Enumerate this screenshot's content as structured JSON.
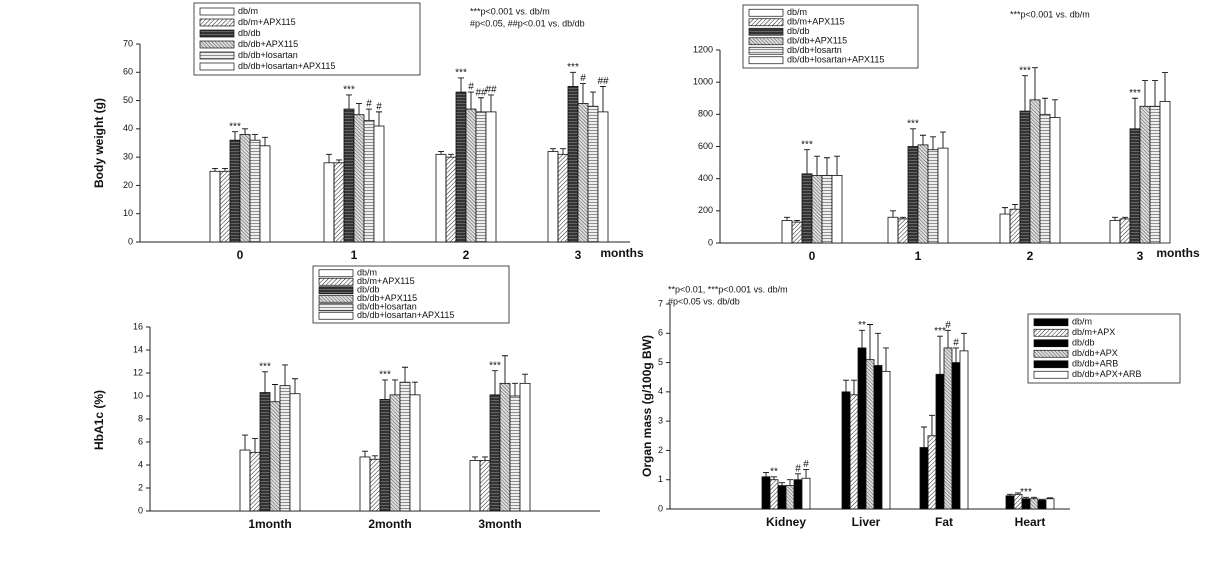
{
  "chart_data": [
    {
      "type": "bar",
      "y_label": "Body weight (g)",
      "x_label": "months",
      "annotations": [
        "***p<0.001 vs. db/m",
        "#p<0.05, ##p<0.01 vs. db/db"
      ],
      "categories": [
        "0",
        "1",
        "2",
        "3"
      ],
      "ylim": [
        0,
        70
      ],
      "yticks": [
        0,
        10,
        20,
        30,
        40,
        50,
        60,
        70
      ],
      "series": [
        {
          "name": "db/m",
          "color": "#ffffff",
          "pattern": "none",
          "values": [
            25,
            28,
            31,
            32
          ],
          "errors": [
            1,
            3,
            1,
            1
          ],
          "markers": [
            null,
            null,
            null,
            null
          ]
        },
        {
          "name": "db/m+APX115",
          "color": "#ffffff",
          "pattern": "diagonal",
          "values": [
            25,
            28,
            30,
            31
          ],
          "errors": [
            1,
            1,
            1,
            2
          ],
          "markers": [
            null,
            null,
            null,
            null
          ]
        },
        {
          "name": "db/db",
          "color": "#555555",
          "pattern": "crosshatch",
          "values": [
            36,
            47,
            53,
            55
          ],
          "errors": [
            3,
            5,
            5,
            5
          ],
          "markers": [
            "***",
            "***",
            "***",
            "***"
          ]
        },
        {
          "name": "db/db+APX115",
          "color": "#bbbbbb",
          "pattern": "diagonal-dense",
          "values": [
            38,
            45,
            47,
            49
          ],
          "errors": [
            2,
            4,
            6,
            7
          ],
          "markers": [
            null,
            null,
            "#",
            "#"
          ]
        },
        {
          "name": "db/db+losartan",
          "color": "#dddddd",
          "pattern": "horizontal",
          "values": [
            36,
            43,
            46,
            48
          ],
          "errors": [
            2,
            4,
            5,
            5
          ],
          "markers": [
            null,
            "#",
            "##",
            null
          ]
        },
        {
          "name": "db/db+losartan+APX115",
          "color": "#ffffff",
          "pattern": "none",
          "values": [
            34,
            41,
            46,
            46
          ],
          "errors": [
            3,
            5,
            6,
            9
          ],
          "markers": [
            null,
            "#",
            "##",
            "##"
          ]
        }
      ]
    },
    {
      "type": "bar",
      "x_label": "months",
      "annotations": [
        "***p<0.001 vs. db/m"
      ],
      "categories": [
        "0",
        "1",
        "2",
        "3"
      ],
      "ylim": [
        0,
        1200
      ],
      "yticks": [
        0,
        200,
        400,
        600,
        800,
        1000,
        1200
      ],
      "series": [
        {
          "name": "db/m",
          "color": "#ffffff",
          "pattern": "none",
          "values": [
            140,
            160,
            180,
            140
          ],
          "errors": [
            20,
            40,
            40,
            20
          ],
          "markers": [
            null,
            null,
            null,
            null
          ]
        },
        {
          "name": "db/m+APX115",
          "color": "#ffffff",
          "pattern": "diagonal",
          "values": [
            130,
            150,
            210,
            150
          ],
          "errors": [
            10,
            10,
            30,
            10
          ],
          "markers": [
            null,
            null,
            null,
            null
          ]
        },
        {
          "name": "db/db",
          "color": "#555555",
          "pattern": "crosshatch",
          "values": [
            430,
            600,
            820,
            710
          ],
          "errors": [
            150,
            110,
            220,
            190
          ],
          "markers": [
            "***",
            "***",
            "***",
            "***"
          ]
        },
        {
          "name": "db/db+APX115",
          "color": "#bbbbbb",
          "pattern": "diagonal-dense",
          "values": [
            420,
            610,
            890,
            850
          ],
          "errors": [
            120,
            60,
            200,
            160
          ],
          "markers": [
            null,
            null,
            null,
            null
          ]
        },
        {
          "name": "db/db+losartn",
          "color": "#dddddd",
          "pattern": "horizontal",
          "values": [
            420,
            580,
            800,
            850
          ],
          "errors": [
            110,
            80,
            100,
            160
          ],
          "markers": [
            null,
            null,
            null,
            null
          ]
        },
        {
          "name": "db/db+losartan+APX115",
          "color": "#ffffff",
          "pattern": "none",
          "values": [
            420,
            590,
            780,
            880
          ],
          "errors": [
            120,
            100,
            110,
            180
          ],
          "markers": [
            null,
            null,
            null,
            null
          ]
        }
      ]
    },
    {
      "type": "bar",
      "y_label": "HbA1c (%)",
      "categories": [
        "1month",
        "2month",
        "3month"
      ],
      "ylim": [
        0,
        16
      ],
      "yticks": [
        0,
        2,
        4,
        6,
        8,
        10,
        12,
        14,
        16
      ],
      "series": [
        {
          "name": "db/m",
          "color": "#ffffff",
          "pattern": "none",
          "values": [
            5.3,
            4.7,
            4.4
          ],
          "errors": [
            1.3,
            0.5,
            0.3
          ],
          "markers": [
            null,
            null,
            null
          ]
        },
        {
          "name": "db/m+APX115",
          "color": "#ffffff",
          "pattern": "diagonal",
          "values": [
            5.1,
            4.5,
            4.4
          ],
          "errors": [
            1.2,
            0.3,
            0.3
          ],
          "markers": [
            null,
            null,
            null
          ]
        },
        {
          "name": "db/db",
          "color": "#555555",
          "pattern": "crosshatch",
          "values": [
            10.3,
            9.7,
            10.1
          ],
          "errors": [
            1.8,
            1.7,
            2.1
          ],
          "markers": [
            "***",
            "***",
            "***"
          ]
        },
        {
          "name": "db/db+APX115",
          "color": "#bbbbbb",
          "pattern": "diagonal-dense",
          "values": [
            9.5,
            10.1,
            11.1
          ],
          "errors": [
            1.5,
            1.3,
            2.4
          ],
          "markers": [
            null,
            null,
            null
          ]
        },
        {
          "name": "db/db+losartan",
          "color": "#dddddd",
          "pattern": "horizontal",
          "values": [
            10.9,
            11.2,
            10.0
          ],
          "errors": [
            1.8,
            1.3,
            1.1
          ],
          "markers": [
            null,
            null,
            null
          ]
        },
        {
          "name": "db/db+losartan+APX115",
          "color": "#ffffff",
          "pattern": "none",
          "values": [
            10.2,
            10.1,
            11.1
          ],
          "errors": [
            1.3,
            1.1,
            0.8
          ],
          "markers": [
            null,
            null,
            null
          ]
        }
      ]
    },
    {
      "type": "bar",
      "y_label": "Organ mass (g/100g BW)",
      "annotations": [
        "**p<0.01, ***p<0.001 vs. db/m",
        "#p<0.05 vs. db/db"
      ],
      "categories": [
        "Kidney",
        "Liver",
        "Fat",
        "Heart"
      ],
      "ylim": [
        0,
        7
      ],
      "yticks": [
        0,
        1,
        2,
        3,
        4,
        5,
        6,
        7
      ],
      "series": [
        {
          "name": "db/m",
          "color": "#000000",
          "pattern": "none",
          "values": [
            1.1,
            4.0,
            2.1,
            0.45
          ],
          "errors": [
            0.15,
            0.4,
            0.7,
            0.05
          ],
          "markers": [
            null,
            null,
            null,
            null
          ]
        },
        {
          "name": "db/m+APX",
          "color": "#ffffff",
          "pattern": "diagonal",
          "values": [
            1.0,
            3.9,
            2.5,
            0.5
          ],
          "errors": [
            0.1,
            0.5,
            0.7,
            0.05
          ],
          "markers": [
            "**",
            null,
            null,
            null
          ]
        },
        {
          "name": "db/db",
          "color": "#000000",
          "pattern": "none",
          "values": [
            0.8,
            5.5,
            4.6,
            0.35
          ],
          "errors": [
            0.1,
            0.6,
            1.3,
            0.05
          ],
          "markers": [
            null,
            "**",
            "***",
            "***"
          ]
        },
        {
          "name": "db/db+APX",
          "color": "#bbbbbb",
          "pattern": "diagonal-dense",
          "values": [
            0.8,
            5.1,
            5.5,
            0.35
          ],
          "errors": [
            0.2,
            1.2,
            0.6,
            0.05
          ],
          "markers": [
            null,
            null,
            "#",
            null
          ]
        },
        {
          "name": "db/db+ARB",
          "color": "#000000",
          "pattern": "none",
          "values": [
            1.0,
            4.9,
            5.0,
            0.3
          ],
          "errors": [
            0.2,
            1.1,
            0.5,
            0.03
          ],
          "markers": [
            "#",
            null,
            "#",
            null
          ]
        },
        {
          "name": "db/db+APX+ARB",
          "color": "#ffffff",
          "pattern": "none",
          "values": [
            1.05,
            4.7,
            5.4,
            0.35
          ],
          "errors": [
            0.3,
            0.8,
            0.6,
            0.03
          ],
          "markers": [
            "#",
            null,
            null,
            null
          ]
        }
      ]
    }
  ]
}
